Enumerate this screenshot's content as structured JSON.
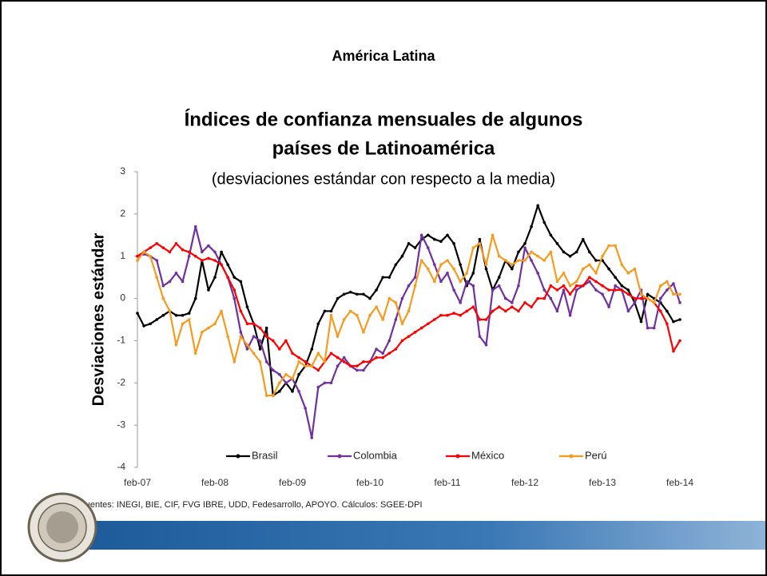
{
  "slide_title": "América Latina",
  "source": "Fuentes: INEGI, BIE, CIF, FVG IBRE, UDD, Fedesarrollo, APOYO. Cálculos: SGEE-DPI",
  "chart_data": {
    "type": "line",
    "title": [
      "Índices de confianza mensuales de algunos",
      "países de  Latinoamérica"
    ],
    "subtitle": "(desviaciones estándar con respecto a la media)",
    "y_label": "Desviaciones estándar",
    "categories": [
      "feb-07",
      null,
      null,
      null,
      null,
      null,
      null,
      null,
      null,
      null,
      null,
      null,
      "feb-08",
      null,
      null,
      null,
      null,
      null,
      null,
      null,
      null,
      null,
      null,
      null,
      "feb-09",
      null,
      null,
      null,
      null,
      null,
      null,
      null,
      null,
      null,
      null,
      null,
      "feb-10",
      null,
      null,
      null,
      null,
      null,
      null,
      null,
      null,
      null,
      null,
      null,
      "feb-11",
      null,
      null,
      null,
      null,
      null,
      null,
      null,
      null,
      null,
      null,
      null,
      "feb-12",
      null,
      null,
      null,
      null,
      null,
      null,
      null,
      null,
      null,
      null,
      null,
      "feb-13",
      null,
      null,
      null,
      null,
      null,
      null,
      null,
      null,
      null,
      null,
      null,
      "feb-14"
    ],
    "ylim": [
      -4,
      3
    ],
    "yticks": [
      -4,
      -3,
      -2,
      -1,
      0,
      1,
      2,
      3
    ],
    "grid": false,
    "legend": "bottom",
    "series": [
      {
        "name": "Brasil",
        "color": "#000000",
        "values": [
          -0.35,
          -0.65,
          -0.6,
          -0.5,
          -0.4,
          -0.3,
          -0.4,
          -0.4,
          -0.35,
          0.0,
          0.9,
          0.2,
          0.5,
          1.1,
          0.8,
          0.5,
          0.4,
          -0.2,
          -0.6,
          -1.2,
          -0.7,
          -2.3,
          -2.2,
          -2.0,
          -2.2,
          -1.8,
          -1.6,
          -1.2,
          -0.6,
          -0.3,
          -0.3,
          0.0,
          0.1,
          0.15,
          0.1,
          0.1,
          0.0,
          0.2,
          0.5,
          0.5,
          0.8,
          1.0,
          1.3,
          1.2,
          1.4,
          1.5,
          1.4,
          1.35,
          1.5,
          1.3,
          0.8,
          0.3,
          0.6,
          1.4,
          0.7,
          0.2,
          0.5,
          0.9,
          0.7,
          1.1,
          1.3,
          1.7,
          2.2,
          1.8,
          1.5,
          1.3,
          1.1,
          1.0,
          1.1,
          1.4,
          1.1,
          0.9,
          0.9,
          0.7,
          0.5,
          0.3,
          0.2,
          -0.1,
          -0.55,
          0.1,
          0.0,
          -0.1,
          -0.3,
          -0.55,
          -0.5
        ]
      },
      {
        "name": "Colombia",
        "color": "#7030a0",
        "values": [
          1.0,
          1.05,
          1.0,
          0.9,
          0.3,
          0.4,
          0.6,
          0.4,
          1.0,
          1.7,
          1.1,
          1.25,
          1.1,
          0.8,
          0.5,
          0.0,
          -0.8,
          -1.2,
          -0.9,
          -1.0,
          -1.5,
          -1.7,
          -1.8,
          -2.0,
          -1.9,
          -2.2,
          -2.6,
          -3.3,
          -2.1,
          -2.0,
          -2.0,
          -1.6,
          -1.4,
          -1.6,
          -1.7,
          -1.7,
          -1.5,
          -1.2,
          -1.3,
          -1.0,
          -0.5,
          0.0,
          0.3,
          0.5,
          1.5,
          1.2,
          0.8,
          0.4,
          0.6,
          0.2,
          -0.1,
          0.4,
          0.3,
          -0.9,
          -1.1,
          0.2,
          0.3,
          0.0,
          -0.1,
          0.3,
          1.2,
          0.9,
          0.6,
          0.2,
          0.0,
          -0.3,
          0.2,
          -0.4,
          0.2,
          0.3,
          0.4,
          0.2,
          0.1,
          -0.2,
          0.3,
          0.2,
          -0.3,
          -0.1,
          0.2,
          -0.7,
          -0.7,
          0.0,
          0.2,
          0.35,
          -0.1
        ]
      },
      {
        "name": "México",
        "color": "#ff0000",
        "values": [
          1.0,
          1.1,
          1.2,
          1.3,
          1.2,
          1.1,
          1.3,
          1.15,
          1.1,
          1.0,
          0.9,
          0.95,
          0.9,
          0.8,
          0.5,
          0.2,
          -0.3,
          -0.6,
          -0.6,
          -0.7,
          -0.9,
          -1.0,
          -1.2,
          -1.0,
          -1.3,
          -1.4,
          -1.5,
          -1.6,
          -1.7,
          -1.5,
          -1.3,
          -1.4,
          -1.5,
          -1.6,
          -1.6,
          -1.5,
          -1.5,
          -1.4,
          -1.4,
          -1.3,
          -1.2,
          -1.0,
          -0.9,
          -0.8,
          -0.7,
          -0.6,
          -0.5,
          -0.4,
          -0.4,
          -0.35,
          -0.4,
          -0.3,
          -0.2,
          -0.5,
          -0.5,
          -0.3,
          -0.2,
          -0.3,
          -0.2,
          -0.3,
          -0.1,
          -0.2,
          0.0,
          0.0,
          0.3,
          0.2,
          0.3,
          0.1,
          0.3,
          0.3,
          0.5,
          0.4,
          0.3,
          0.2,
          0.2,
          0.2,
          0.1,
          0.0,
          0.0,
          0.0,
          -0.1,
          -0.3,
          -0.6,
          -1.25,
          -1.0
        ]
      },
      {
        "name": "Perú",
        "color": "#f79a1e",
        "values": [
          0.9,
          1.1,
          1.0,
          0.5,
          0.0,
          -0.3,
          -1.1,
          -0.6,
          -0.5,
          -1.3,
          -0.8,
          -0.7,
          -0.6,
          -0.3,
          -0.9,
          -1.5,
          -0.9,
          -1.1,
          -1.3,
          -1.5,
          -2.3,
          -2.3,
          -2.0,
          -1.8,
          -1.9,
          -1.5,
          -1.6,
          -1.6,
          -1.3,
          -1.5,
          -0.4,
          -0.9,
          -0.5,
          -0.3,
          -0.4,
          -0.8,
          -0.4,
          -0.2,
          -0.5,
          0.0,
          -0.1,
          -0.6,
          -0.3,
          0.3,
          0.9,
          0.7,
          0.4,
          0.8,
          0.9,
          0.7,
          0.4,
          0.6,
          1.2,
          1.3,
          0.8,
          1.5,
          1.0,
          0.9,
          0.8,
          0.9,
          0.9,
          1.1,
          1.0,
          0.9,
          1.1,
          0.4,
          0.6,
          0.3,
          0.4,
          0.7,
          0.8,
          0.6,
          1.0,
          1.25,
          1.25,
          0.8,
          0.6,
          0.7,
          0.1,
          0.0,
          -0.1,
          0.3,
          0.4,
          0.1,
          0.1
        ]
      }
    ]
  }
}
